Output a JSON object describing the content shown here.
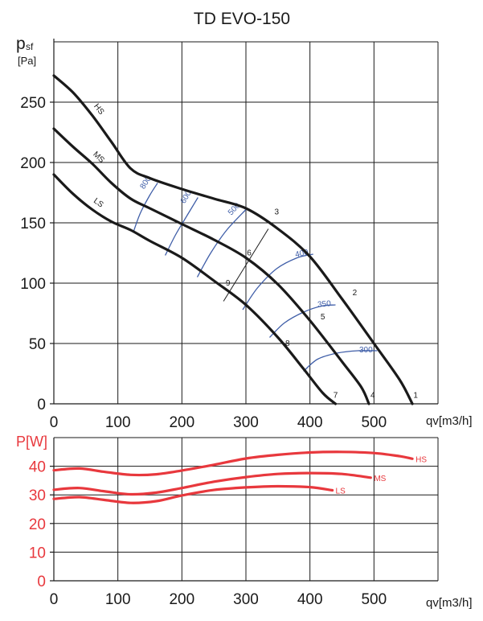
{
  "chart_data": [
    {
      "type": "line",
      "title": "TD EVO-150",
      "ylabel_main": "p",
      "ylabel_sub": "sf",
      "ylabel_unit": "[Pa]",
      "xlabel": "qv[m3/h]",
      "xlim": [
        0,
        600
      ],
      "ylim": [
        0,
        300
      ],
      "xticks": [
        0,
        100,
        200,
        300,
        400,
        500
      ],
      "yticks": [
        0,
        50,
        100,
        150,
        200,
        250
      ],
      "grid": true,
      "series": [
        {
          "name": "HS",
          "x": [
            0,
            30,
            60,
            90,
            120,
            150,
            200,
            250,
            300,
            350,
            400,
            450,
            500,
            540,
            560
          ],
          "y": [
            272,
            258,
            239,
            217,
            195,
            187,
            178,
            170,
            162,
            145,
            122,
            87,
            50,
            20,
            0
          ]
        },
        {
          "name": "MS",
          "x": [
            0,
            30,
            60,
            90,
            120,
            150,
            200,
            250,
            300,
            350,
            400,
            450,
            480,
            492
          ],
          "y": [
            228,
            213,
            199,
            183,
            170,
            162,
            149,
            136,
            121,
            99,
            69,
            35,
            14,
            0
          ]
        },
        {
          "name": "LS",
          "x": [
            0,
            30,
            60,
            90,
            120,
            150,
            200,
            250,
            300,
            350,
            390,
            420,
            440
          ],
          "y": [
            190,
            174,
            161,
            151,
            144,
            135,
            121,
            102,
            82,
            55,
            29,
            9,
            0
          ]
        }
      ],
      "iso_lines": [
        {
          "label": "800",
          "x": [
            124,
            135,
            150,
            162
          ],
          "y": [
            142,
            158,
            173,
            183
          ]
        },
        {
          "label": "600",
          "x": [
            174,
            190,
            208,
            225
          ],
          "y": [
            123,
            140,
            156,
            171
          ]
        },
        {
          "label": "500",
          "x": [
            224,
            245,
            270,
            300
          ],
          "y": [
            105,
            125,
            144,
            161
          ]
        },
        {
          "label": "400",
          "x": [
            295,
            318,
            348,
            380,
            405
          ],
          "y": [
            78,
            96,
            112,
            121,
            124
          ]
        },
        {
          "label": "350",
          "x": [
            337,
            360,
            390,
            418,
            440
          ],
          "y": [
            55,
            67,
            76,
            81,
            82
          ]
        },
        {
          "label": "300",
          "x": [
            390,
            412,
            442,
            475,
            505
          ],
          "y": [
            27,
            37,
            42,
            44,
            44
          ]
        }
      ],
      "system_lines": [
        {
          "labels": [
            "9",
            "6",
            "3"
          ],
          "x": [
            265,
            335
          ],
          "y": [
            85,
            145
          ]
        }
      ],
      "point_labels": [
        {
          "text": "1",
          "x": 565,
          "y": 5
        },
        {
          "text": "2",
          "x": 470,
          "y": 90
        },
        {
          "text": "3",
          "x": 348,
          "y": 157
        },
        {
          "text": "4",
          "x": 498,
          "y": 5
        },
        {
          "text": "5",
          "x": 420,
          "y": 70
        },
        {
          "text": "6",
          "x": 305,
          "y": 123
        },
        {
          "text": "7",
          "x": 440,
          "y": 5
        },
        {
          "text": "8",
          "x": 365,
          "y": 48
        },
        {
          "text": "9",
          "x": 272,
          "y": 98
        }
      ]
    },
    {
      "type": "line",
      "ylabel": "P[W]",
      "xlabel": "qv[m3/h]",
      "xlim": [
        0,
        600
      ],
      "ylim": [
        0,
        50
      ],
      "xticks": [
        0,
        100,
        200,
        300,
        400,
        500
      ],
      "yticks": [
        0,
        10,
        20,
        30,
        40
      ],
      "grid": true,
      "series": [
        {
          "name": "HS",
          "x": [
            0,
            40,
            80,
            120,
            160,
            200,
            250,
            300,
            350,
            400,
            450,
            500,
            540,
            560
          ],
          "y": [
            38.6,
            39.2,
            38,
            37,
            37.2,
            38.5,
            40.5,
            42.7,
            44,
            44.8,
            45,
            44.6,
            43.5,
            42.6
          ]
        },
        {
          "name": "MS",
          "x": [
            0,
            40,
            80,
            120,
            160,
            200,
            250,
            300,
            350,
            400,
            450,
            495
          ],
          "y": [
            31.8,
            32.4,
            31.2,
            30.2,
            30.8,
            32.4,
            34.6,
            36.2,
            37.3,
            37.6,
            37.3,
            36
          ]
        },
        {
          "name": "LS",
          "x": [
            0,
            40,
            80,
            120,
            160,
            200,
            250,
            300,
            350,
            400,
            435
          ],
          "y": [
            28.6,
            29.2,
            28.2,
            27.2,
            27.8,
            29.8,
            31.7,
            32.6,
            33,
            32.7,
            31.6
          ]
        }
      ]
    }
  ]
}
